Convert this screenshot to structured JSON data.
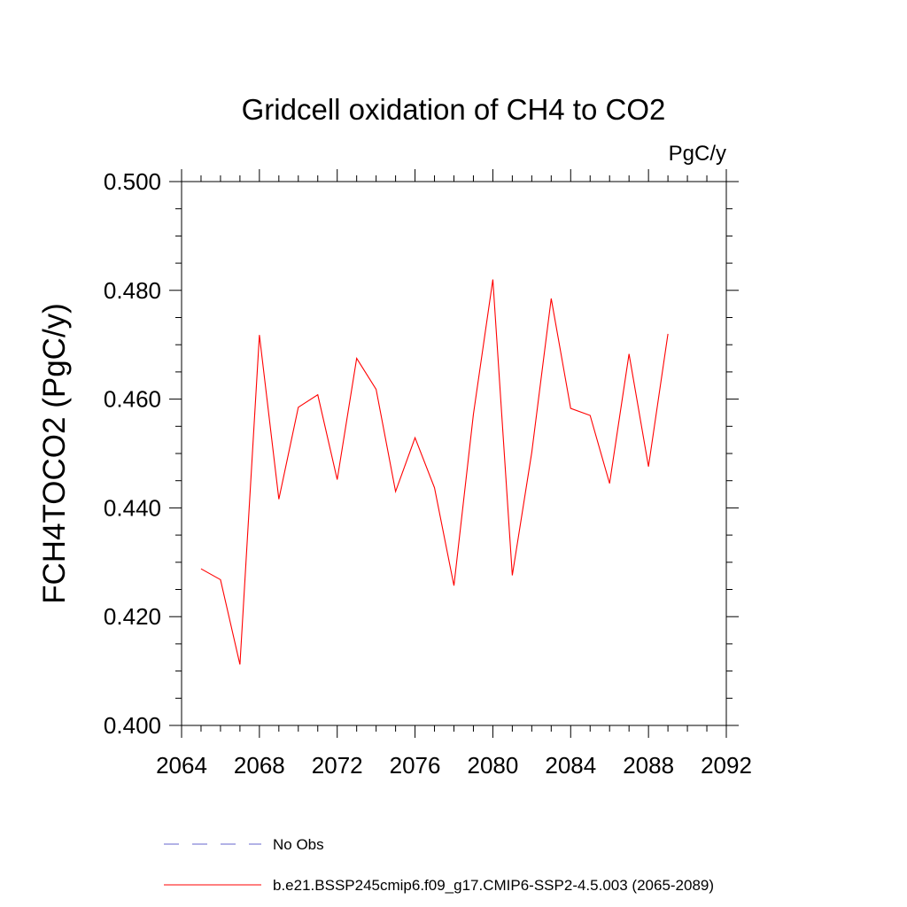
{
  "chart_data": {
    "type": "line",
    "title": "Gridcell oxidation of CH4 to CO2",
    "units_label": "PgC/y",
    "xlabel": "",
    "ylabel": "FCH4TOCO2  (PgC/y)",
    "xlim": [
      2064,
      2092
    ],
    "ylim": [
      0.4,
      0.5
    ],
    "x_ticks": [
      2064,
      2068,
      2072,
      2076,
      2080,
      2084,
      2088,
      2092
    ],
    "x_tick_labels": [
      "2064",
      "2068",
      "2072",
      "2076",
      "2080",
      "2084",
      "2088",
      "2092"
    ],
    "y_ticks": [
      0.4,
      0.42,
      0.44,
      0.46,
      0.48,
      0.5
    ],
    "y_tick_labels": [
      "0.400",
      "0.420",
      "0.440",
      "0.460",
      "0.480",
      "0.500"
    ],
    "grid": false,
    "legend_position": "bottom",
    "series": [
      {
        "name": "b.e21.BSSP245cmip6.f09_g17.CMIP6-SSP2-4.5.003 (2065-2089)",
        "color": "#ff0000",
        "style": "solid",
        "x": [
          2065,
          2066,
          2067,
          2068,
          2069,
          2070,
          2071,
          2072,
          2073,
          2074,
          2075,
          2076,
          2077,
          2078,
          2079,
          2080,
          2081,
          2082,
          2083,
          2084,
          2085,
          2086,
          2087,
          2088,
          2089
        ],
        "values": [
          0.4288,
          0.4268,
          0.4112,
          0.4718,
          0.4416,
          0.4585,
          0.4608,
          0.4452,
          0.4675,
          0.4618,
          0.443,
          0.4529,
          0.4437,
          0.4257,
          0.4572,
          0.482,
          0.4276,
          0.4502,
          0.4785,
          0.4583,
          0.457,
          0.4445,
          0.4683,
          0.4476,
          0.472
        ]
      }
    ],
    "legend": [
      {
        "label": "No Obs",
        "color": "#6666cc",
        "style": "dashed"
      },
      {
        "label": "b.e21.BSSP245cmip6.f09_g17.CMIP6-SSP2-4.5.003 (2065-2089)",
        "color": "#ff0000",
        "style": "solid"
      }
    ]
  }
}
